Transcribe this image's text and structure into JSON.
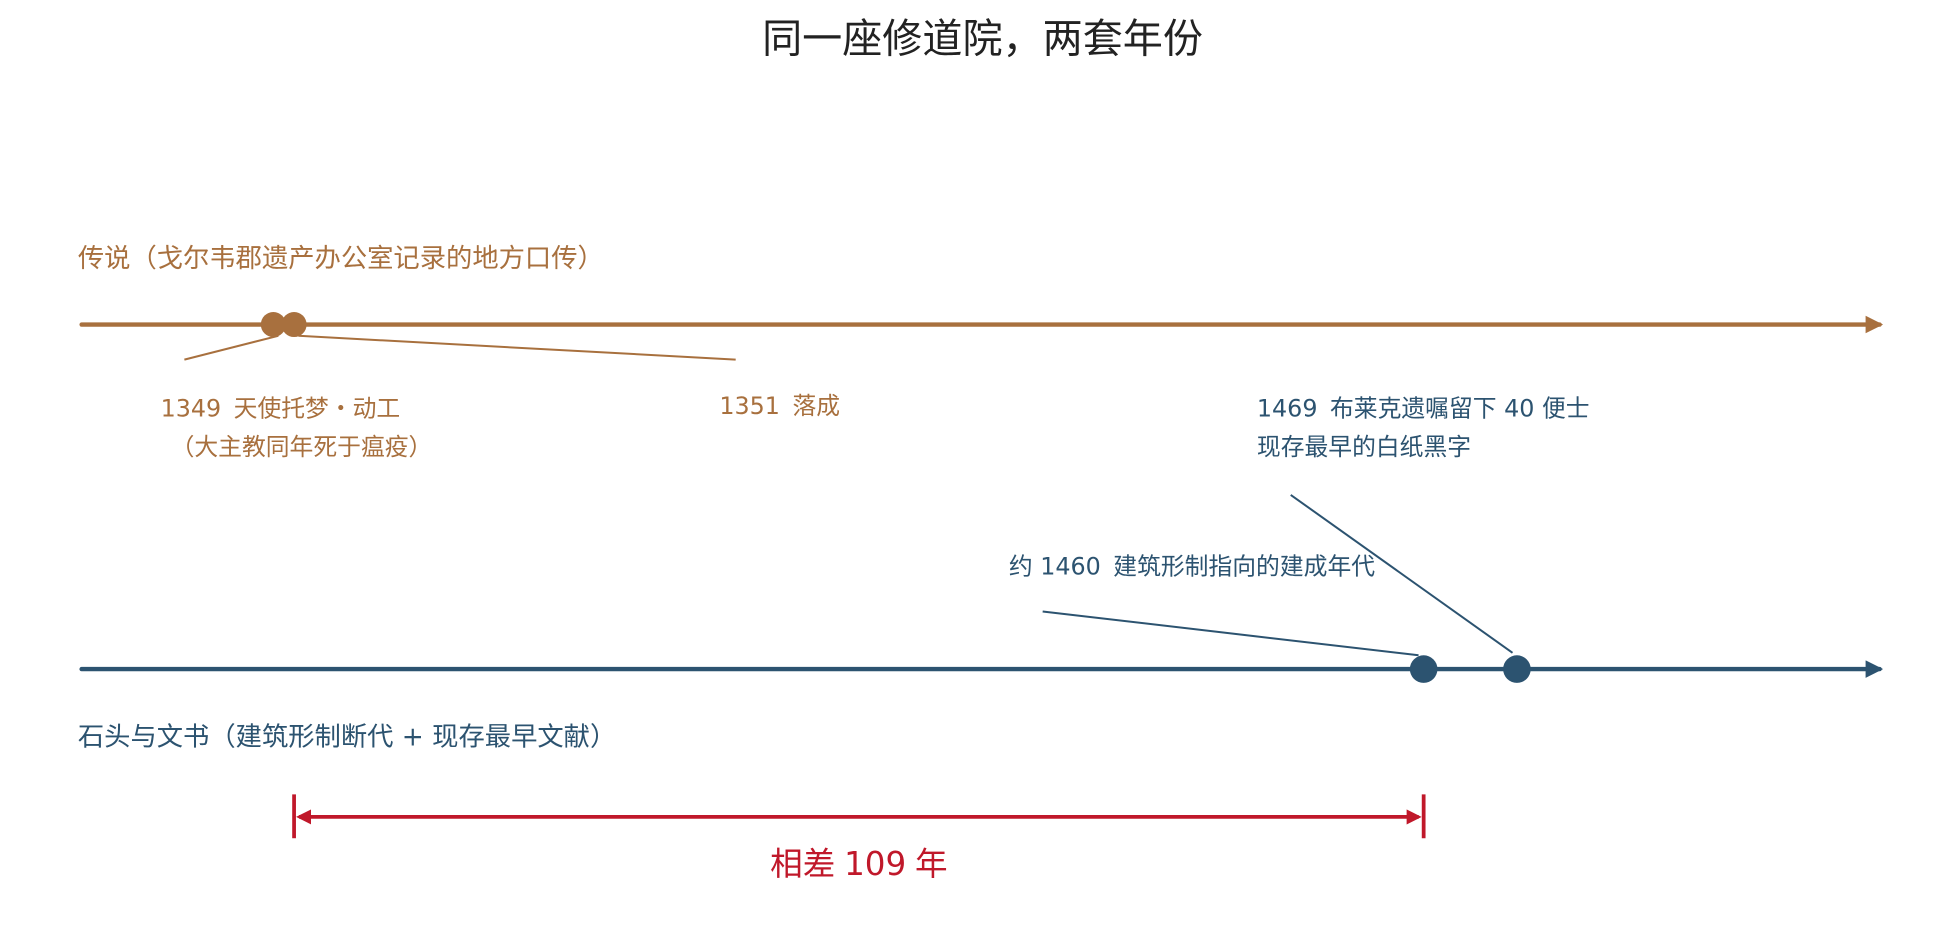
{
  "chart_data": {
    "type": "timeline",
    "title": "同一座修道院，两套年份",
    "xlim": [
      1330.5,
      1504
    ],
    "tracks": [
      {
        "name": "传说（戈尔韦郡遗产办公室记录的地方口传）",
        "color": "#a8703e",
        "events": [
          {
            "year": 1349,
            "label": "天使托梦・动工",
            "note": "（大主教同年死于瘟疫）"
          },
          {
            "year": 1351,
            "label": "落成"
          }
        ]
      },
      {
        "name": "石头与文书（建筑形制断代 + 现存最早文献）",
        "color": "#2c5370",
        "events": [
          {
            "prefix": "约",
            "year": 1460,
            "label": "建筑形制指向的建成年代"
          },
          {
            "year": 1469,
            "label": "布莱克遗嘱留下 40 便士",
            "note": "现存最早的白纸黑字"
          }
        ]
      }
    ],
    "gap": {
      "prefix": "相差",
      "value": 109,
      "suffix": "年",
      "color": "#c0182a"
    }
  }
}
